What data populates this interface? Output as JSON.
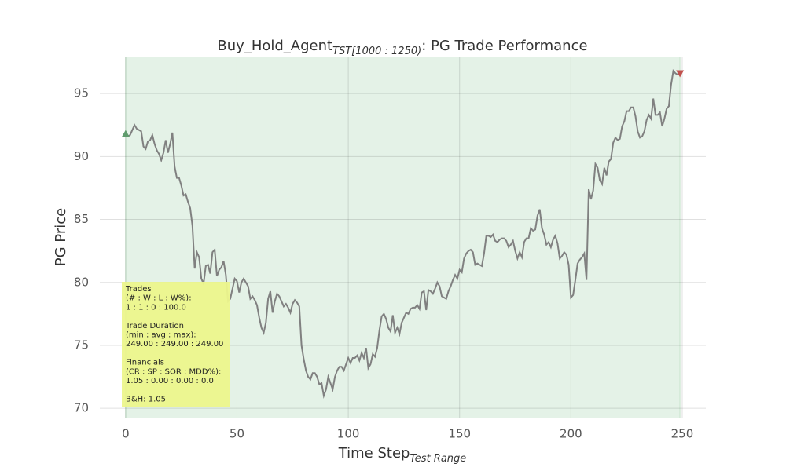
{
  "chart_data": {
    "type": "line",
    "title": {
      "main": "Buy_Hold_Agent",
      "subscript": "TST[1000 : 1250)",
      "rest": ": PG Trade Performance"
    },
    "xlabel": {
      "main": "Time Step",
      "subscript": "Test Range"
    },
    "ylabel": "PG Price",
    "x": [
      0,
      1,
      2,
      3,
      4,
      5,
      6,
      7,
      8,
      9,
      10,
      11,
      12,
      13,
      14,
      15,
      16,
      17,
      18,
      19,
      20,
      21,
      22,
      23,
      24,
      25,
      26,
      27,
      28,
      29,
      30,
      31,
      32,
      33,
      34,
      35,
      36,
      37,
      38,
      39,
      40,
      41,
      42,
      43,
      44,
      45,
      46,
      47,
      48,
      49,
      50,
      51,
      52,
      53,
      54,
      55,
      56,
      57,
      58,
      59,
      60,
      61,
      62,
      63,
      64,
      65,
      66,
      67,
      68,
      69,
      70,
      71,
      72,
      73,
      74,
      75,
      76,
      77,
      78,
      79,
      80,
      81,
      82,
      83,
      84,
      85,
      86,
      87,
      88,
      89,
      90,
      91,
      92,
      93,
      94,
      95,
      96,
      97,
      98,
      99,
      100,
      101,
      102,
      103,
      104,
      105,
      106,
      107,
      108,
      109,
      110,
      111,
      112,
      113,
      114,
      115,
      116,
      117,
      118,
      119,
      120,
      121,
      122,
      123,
      124,
      125,
      126,
      127,
      128,
      129,
      130,
      131,
      132,
      133,
      134,
      135,
      136,
      137,
      138,
      139,
      140,
      141,
      142,
      143,
      144,
      145,
      146,
      147,
      148,
      149,
      150,
      151,
      152,
      153,
      154,
      155,
      156,
      157,
      158,
      159,
      160,
      161,
      162,
      163,
      164,
      165,
      166,
      167,
      168,
      169,
      170,
      171,
      172,
      173,
      174,
      175,
      176,
      177,
      178,
      179,
      180,
      181,
      182,
      183,
      184,
      185,
      186,
      187,
      188,
      189,
      190,
      191,
      192,
      193,
      194,
      195,
      196,
      197,
      198,
      199,
      200,
      201,
      202,
      203,
      204,
      205,
      206,
      207,
      208,
      209,
      210,
      211,
      212,
      213,
      214,
      215,
      216,
      217,
      218,
      219,
      220,
      221,
      222,
      223,
      224,
      225,
      226,
      227,
      228,
      229,
      230,
      231,
      232,
      233,
      234,
      235,
      236,
      237,
      238,
      239,
      240,
      241,
      242,
      243,
      244,
      245,
      246,
      247,
      248,
      249
    ],
    "series": [
      {
        "color": "#808080",
        "values": [
          91.8,
          91.6,
          91.7,
          92.1,
          92.5,
          92.2,
          92.1,
          92.0,
          90.8,
          90.6,
          91.2,
          91.3,
          91.7,
          91.0,
          90.5,
          90.2,
          89.7,
          90.3,
          91.3,
          90.3,
          91.0,
          91.9,
          89.2,
          88.3,
          88.3,
          87.7,
          86.9,
          87.0,
          86.4,
          85.9,
          84.5,
          81.1,
          82.4,
          82.0,
          80.3,
          79.9,
          81.3,
          81.4,
          80.7,
          82.4,
          82.6,
          80.5,
          81.0,
          81.2,
          81.7,
          80.6,
          78.5,
          78.7,
          79.5,
          80.3,
          80.1,
          79.2,
          80.0,
          80.3,
          80.0,
          79.7,
          78.7,
          78.9,
          78.6,
          78.2,
          77.2,
          76.4,
          76.0,
          76.8,
          78.7,
          79.3,
          77.6,
          78.5,
          79.1,
          78.9,
          78.5,
          78.1,
          78.3,
          78.0,
          77.6,
          78.3,
          78.6,
          78.4,
          78.1,
          75.0,
          73.9,
          73.0,
          72.5,
          72.3,
          72.8,
          72.8,
          72.5,
          71.9,
          72.0,
          71.0,
          71.5,
          72.5,
          72.0,
          71.5,
          72.5,
          73.0,
          73.3,
          73.3,
          73.0,
          73.5,
          74.0,
          73.6,
          74.0,
          74.0,
          74.2,
          73.8,
          74.4,
          74.0,
          74.8,
          73.2,
          73.5,
          74.3,
          74.1,
          74.8,
          76.2,
          77.3,
          77.5,
          77.1,
          76.4,
          76.1,
          77.4,
          76.0,
          76.4,
          75.9,
          76.8,
          77.2,
          77.6,
          77.5,
          77.9,
          78.0,
          78.0,
          78.2,
          77.9,
          79.2,
          79.3,
          77.8,
          79.4,
          79.3,
          79.1,
          79.5,
          80.0,
          79.7,
          78.9,
          78.8,
          78.7,
          79.3,
          79.7,
          80.2,
          80.6,
          80.3,
          81.0,
          80.8,
          81.9,
          82.3,
          82.5,
          82.6,
          82.4,
          81.4,
          81.5,
          81.4,
          81.3,
          82.3,
          83.7,
          83.7,
          83.6,
          83.8,
          83.3,
          83.2,
          83.4,
          83.5,
          83.5,
          83.3,
          82.8,
          83.0,
          83.3,
          82.5,
          81.9,
          82.4,
          82.0,
          83.2,
          83.5,
          83.5,
          84.3,
          84.1,
          84.2,
          85.3,
          85.8,
          84.3,
          83.8,
          83.0,
          83.2,
          82.8,
          83.4,
          83.7,
          83.1,
          81.9,
          82.1,
          82.4,
          82.2,
          81.4,
          78.8,
          79.0,
          80.2,
          81.5,
          81.8,
          82.0,
          82.3,
          80.2,
          87.4,
          86.6,
          87.3,
          89.4,
          89.1,
          88.1,
          87.8,
          89.1,
          88.5,
          89.6,
          89.8,
          91.1,
          91.5,
          91.3,
          91.4,
          92.4,
          92.8,
          93.6,
          93.6,
          93.9,
          93.9,
          93.2,
          92.0,
          91.5,
          91.6,
          92.0,
          92.9,
          93.3,
          93.0,
          94.6,
          93.3,
          93.3,
          93.5,
          92.4,
          93.0,
          93.8,
          94.0,
          95.7,
          96.8,
          96.6,
          96.5,
          96.6
        ]
      }
    ],
    "markers": [
      {
        "x": 0,
        "y": 91.8,
        "shape": "up",
        "color": "#5f9c6d"
      },
      {
        "x": 249,
        "y": 96.6,
        "shape": "down",
        "color": "#c0504d"
      }
    ],
    "span": {
      "x": [
        0,
        249
      ],
      "color": "#5fb26e"
    },
    "annotation": [
      [
        "Trades",
        "(# : W : L : W%):",
        "1 : 1 : 0 : 100.0"
      ],
      [
        "Trade Duration",
        "(min : avg : max):",
        "249.00 : 249.00 : 249.00"
      ],
      [
        "Financials",
        "(CR : SP : SOR : MDD%):",
        "1.05 : 0.00 : 0.00 : 0.0"
      ],
      [
        "B&H: 1.05"
      ]
    ],
    "annotation_color": "#ecf58c",
    "xlim": [
      -11.6,
      260.6
    ],
    "ylim": [
      69.2,
      97.94
    ],
    "xticks": [
      0,
      50,
      100,
      150,
      200,
      250
    ],
    "yticks": [
      70,
      75,
      80,
      85,
      90,
      95
    ],
    "grid": true
  }
}
